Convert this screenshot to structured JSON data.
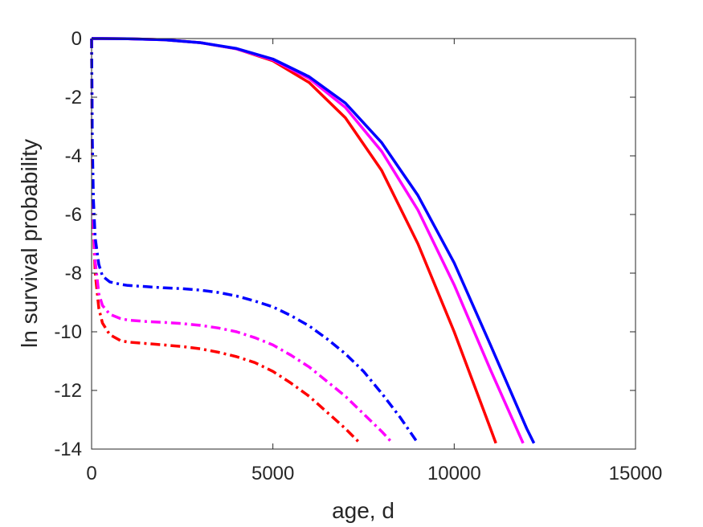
{
  "chart_data": {
    "type": "line",
    "xlabel": "age, d",
    "ylabel": "ln survival probability",
    "xlim": [
      0,
      15000
    ],
    "ylim": [
      -14,
      0
    ],
    "xticks": [
      0,
      5000,
      10000,
      15000
    ],
    "yticks": [
      0,
      -2,
      -4,
      -6,
      -8,
      -10,
      -12,
      -14
    ],
    "grid": false,
    "series": [
      {
        "color": "#ff0000",
        "style": "solid",
        "x": [
          0,
          1000,
          2000,
          3000,
          4000,
          5000,
          6000,
          7000,
          8000,
          9000,
          10000,
          11000,
          11150
        ],
        "y": [
          0,
          -0.005,
          -0.04,
          -0.14,
          -0.35,
          -0.76,
          -1.5,
          -2.7,
          -4.5,
          -7.0,
          -10.0,
          -13.3,
          -13.8
        ]
      },
      {
        "color": "#ff00ff",
        "style": "solid",
        "x": [
          0,
          1000,
          2000,
          3000,
          4000,
          5000,
          6000,
          7000,
          8000,
          9000,
          10000,
          11000,
          11900
        ],
        "y": [
          0,
          -0.005,
          -0.04,
          -0.14,
          -0.35,
          -0.73,
          -1.36,
          -2.35,
          -3.85,
          -5.85,
          -8.4,
          -11.3,
          -13.8
        ]
      },
      {
        "color": "#0000ff",
        "style": "solid",
        "x": [
          0,
          1000,
          2000,
          3000,
          4000,
          5000,
          6000,
          7000,
          8000,
          9000,
          10000,
          11000,
          12000,
          12200
        ],
        "y": [
          0,
          -0.005,
          -0.04,
          -0.14,
          -0.34,
          -0.7,
          -1.3,
          -2.2,
          -3.55,
          -5.35,
          -7.65,
          -10.45,
          -13.3,
          -13.8
        ]
      },
      {
        "color": "#ff0000",
        "style": "dashdot",
        "x": [
          0,
          20,
          50,
          100,
          200,
          300,
          500,
          800,
          1000,
          1500,
          2000,
          2500,
          3000,
          3500,
          4000,
          4500,
          5000,
          5500,
          6000,
          6500,
          7000,
          7400
        ],
        "y": [
          0,
          -4.0,
          -6.5,
          -8.0,
          -9.2,
          -9.7,
          -10.1,
          -10.3,
          -10.35,
          -10.4,
          -10.45,
          -10.5,
          -10.58,
          -10.7,
          -10.85,
          -11.05,
          -11.35,
          -11.75,
          -12.2,
          -12.75,
          -13.3,
          -13.8
        ]
      },
      {
        "color": "#ff00ff",
        "style": "dashdot",
        "x": [
          0,
          20,
          50,
          100,
          200,
          300,
          500,
          800,
          1000,
          1500,
          2000,
          2500,
          3000,
          3500,
          4000,
          4500,
          5000,
          5500,
          6000,
          6500,
          7000,
          7500,
          8000,
          8300
        ],
        "y": [
          0,
          -4.0,
          -6.3,
          -7.6,
          -8.7,
          -9.1,
          -9.4,
          -9.55,
          -9.6,
          -9.65,
          -9.68,
          -9.72,
          -9.78,
          -9.87,
          -10.0,
          -10.2,
          -10.45,
          -10.8,
          -11.2,
          -11.7,
          -12.2,
          -12.8,
          -13.4,
          -13.8
        ]
      },
      {
        "color": "#0000ff",
        "style": "dashdot",
        "x": [
          0,
          20,
          50,
          100,
          200,
          300,
          500,
          800,
          1000,
          1500,
          2000,
          2500,
          3000,
          3500,
          4000,
          4500,
          5000,
          5500,
          6000,
          6500,
          7000,
          7500,
          8000,
          8500,
          9000
        ],
        "y": [
          0,
          -3.5,
          -5.5,
          -6.8,
          -7.7,
          -8.1,
          -8.3,
          -8.38,
          -8.42,
          -8.46,
          -8.5,
          -8.53,
          -8.58,
          -8.66,
          -8.78,
          -8.95,
          -9.15,
          -9.45,
          -9.8,
          -10.25,
          -10.75,
          -11.35,
          -12.1,
          -12.9,
          -13.8
        ]
      }
    ]
  }
}
